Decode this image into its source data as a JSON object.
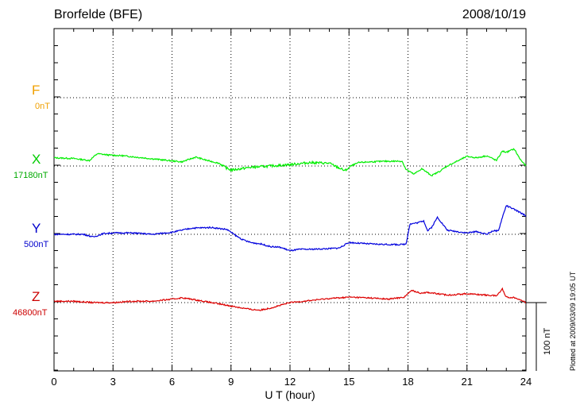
{
  "header": {
    "station": "Brorfelde (BFE)",
    "date": "2008/10/19"
  },
  "side_labels": [
    {
      "letter": "F",
      "base": "0nT",
      "color": "#f0a000"
    },
    {
      "letter": "X",
      "base": "17180nT",
      "color": "#00cc00"
    },
    {
      "letter": "Y",
      "base": "500nT",
      "color": "#0000cc"
    },
    {
      "letter": "Z",
      "base": "46800nT",
      "color": "#cc0000"
    }
  ],
  "scale_bar": {
    "label": "100 nT"
  },
  "footer_note": "Plotted at 2009/03/09 19:05 UT",
  "chart_data": {
    "type": "line",
    "xlabel": "U T (hour)",
    "xlim": [
      0,
      24
    ],
    "xticks": [
      "0",
      "3",
      "6",
      "9",
      "12",
      "15",
      "18",
      "21",
      "24"
    ],
    "series": [
      {
        "name": "X",
        "color": "#00ee00",
        "baseline_nT": 17180,
        "x": [
          0,
          1,
          1.8,
          2.2,
          2.8,
          3.5,
          4.5,
          5.5,
          6.5,
          7.2,
          7.8,
          8.4,
          8.7,
          9.0,
          9.5,
          10,
          11,
          12,
          13,
          14,
          14.5,
          14.8,
          15.1,
          15.5,
          16,
          17,
          17.7,
          17.9,
          18.3,
          18.7,
          19.2,
          19.6,
          20,
          21,
          21.5,
          22,
          22.5,
          22.8,
          23,
          23.4,
          23.7,
          24
        ],
        "y": [
          12,
          11,
          8,
          18,
          16,
          15,
          12,
          9,
          6,
          13,
          8,
          4,
          -2,
          -6,
          -4,
          -2,
          0,
          2,
          5,
          4,
          -3,
          -7,
          0,
          5,
          6,
          7,
          7,
          -5,
          -12,
          -4,
          -14,
          -8,
          0,
          14,
          12,
          15,
          8,
          22,
          20,
          25,
          10,
          0
        ]
      },
      {
        "name": "Y",
        "color": "#0000dd",
        "baseline_nT": 500,
        "x": [
          0,
          1.5,
          2,
          2.5,
          3,
          4,
          5,
          6,
          6.5,
          7,
          8,
          8.8,
          9.3,
          9.6,
          10,
          10.5,
          11,
          11.5,
          12,
          12.5,
          13,
          14,
          14.5,
          15,
          15.5,
          16,
          17,
          17.7,
          17.9,
          18.1,
          18.5,
          18.8,
          19,
          19.2,
          19.5,
          20,
          21,
          21.5,
          22,
          22.3,
          22.6,
          22.8,
          23,
          23.5,
          24
        ],
        "y": [
          0,
          0,
          -4,
          1,
          2,
          2,
          0,
          3,
          6,
          9,
          10,
          7,
          -3,
          -8,
          -12,
          -14,
          -18,
          -19,
          -24,
          -22,
          -22,
          -21,
          -20,
          -12,
          -13,
          -14,
          -15,
          -15,
          -14,
          15,
          17,
          20,
          5,
          10,
          25,
          6,
          2,
          4,
          0,
          5,
          5,
          25,
          42,
          35,
          27
        ]
      },
      {
        "name": "Z",
        "color": "#dd0000",
        "baseline_nT": 46800,
        "x": [
          0,
          1,
          2,
          3,
          4,
          5,
          6,
          6.5,
          7,
          8,
          9,
          10,
          10.5,
          11,
          12,
          13,
          14,
          15,
          16,
          17,
          17.8,
          18.2,
          18.6,
          19,
          20,
          21,
          22,
          22.5,
          22.8,
          23,
          23.5,
          24
        ],
        "y": [
          2,
          2,
          0,
          0,
          2,
          2,
          5,
          7,
          5,
          0,
          -5,
          -10,
          -11,
          -8,
          0,
          3,
          6,
          8,
          7,
          5,
          8,
          18,
          14,
          15,
          11,
          13,
          11,
          10,
          20,
          8,
          7,
          0
        ]
      }
    ]
  }
}
